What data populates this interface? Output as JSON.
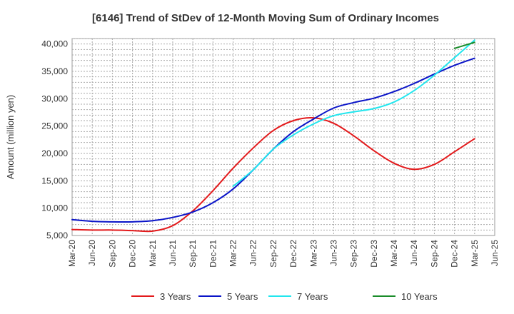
{
  "chart_data": {
    "type": "line",
    "title": "[6146]  Trend of StDev of 12-Month Moving Sum of Ordinary Incomes",
    "xlabel": "",
    "ylabel": "Amount (million yen)",
    "ylim": [
      5000,
      41000
    ],
    "yticks": [
      5000,
      10000,
      15000,
      20000,
      25000,
      30000,
      35000,
      40000
    ],
    "ytick_labels": [
      "5,000",
      "10,000",
      "15,000",
      "20,000",
      "25,000",
      "30,000",
      "35,000",
      "40,000"
    ],
    "categories": [
      "Mar-20",
      "Jun-20",
      "Sep-20",
      "Dec-20",
      "Mar-21",
      "Jun-21",
      "Sep-21",
      "Dec-21",
      "Mar-22",
      "Jun-22",
      "Sep-22",
      "Dec-22",
      "Mar-23",
      "Jun-23",
      "Sep-23",
      "Dec-23",
      "Mar-24",
      "Jun-24",
      "Sep-24",
      "Dec-24",
      "Mar-25",
      "Jun-25"
    ],
    "grid": true,
    "legend_position": "bottom",
    "series": [
      {
        "name": "3 Years",
        "color": "#e31a1c",
        "values": [
          6100,
          6000,
          6000,
          5900,
          5800,
          6800,
          9500,
          13200,
          17300,
          21000,
          24200,
          26000,
          26500,
          25500,
          23200,
          20500,
          18200,
          17100,
          18000,
          20300,
          22700,
          null
        ]
      },
      {
        "name": "5 Years",
        "color": "#0a14c8",
        "values": [
          7900,
          7600,
          7500,
          7500,
          7700,
          8300,
          9300,
          11000,
          13500,
          17000,
          20800,
          24000,
          26300,
          28300,
          29300,
          30100,
          31300,
          32800,
          34500,
          36100,
          37400,
          null
        ]
      },
      {
        "name": "7 Years",
        "color": "#22e6ee",
        "values": [
          null,
          null,
          null,
          null,
          null,
          null,
          null,
          null,
          14000,
          17000,
          20800,
          23400,
          25400,
          26900,
          27600,
          28200,
          29400,
          31500,
          34300,
          37500,
          40700,
          null
        ]
      },
      {
        "name": "10 Years",
        "color": "#1a8c2a",
        "values": [
          null,
          null,
          null,
          null,
          null,
          null,
          null,
          null,
          null,
          null,
          null,
          null,
          null,
          null,
          null,
          null,
          null,
          null,
          null,
          39200,
          40300,
          null
        ]
      }
    ]
  }
}
